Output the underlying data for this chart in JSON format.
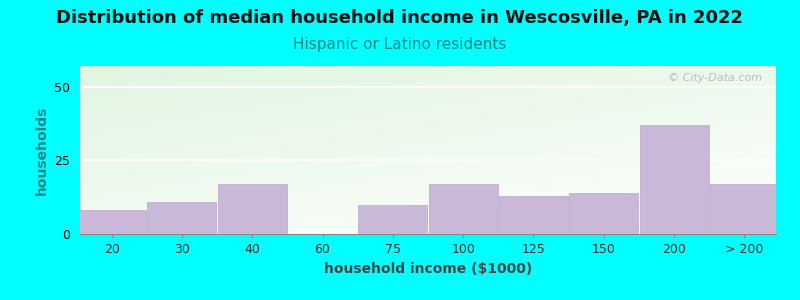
{
  "title": "Distribution of median household income in Wescosville, PA in 2022",
  "subtitle": "Hispanic or Latino residents",
  "xlabel": "household income ($1000)",
  "ylabel": "households",
  "background_color": "#00FFFF",
  "bar_color": "#c9b8d8",
  "bar_edge_color": "#b8a8cc",
  "watermark": "© City-Data.com",
  "values": [
    8,
    11,
    17,
    0,
    10,
    17,
    13,
    14,
    37,
    17
  ],
  "ylim": [
    0,
    57
  ],
  "yticks": [
    0,
    25,
    50
  ],
  "title_fontsize": 13,
  "subtitle_fontsize": 11,
  "axis_label_fontsize": 10,
  "tick_fontsize": 9,
  "ylabel_color": "#008888",
  "title_color": "#111111",
  "subtitle_color": "#008888",
  "xlabel_color": "#444444"
}
